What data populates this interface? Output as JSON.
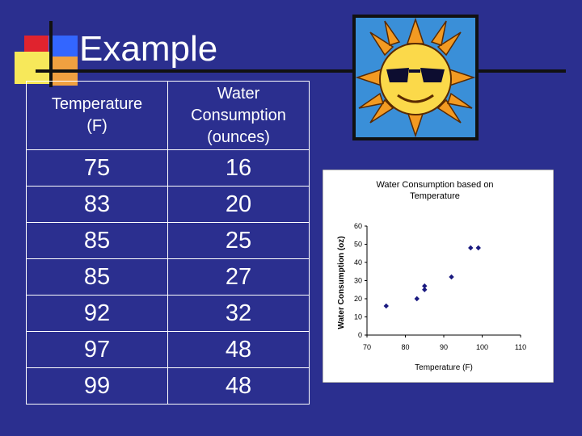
{
  "slide": {
    "title": "Example",
    "colors": {
      "background": "#2b2f8f",
      "text": "#ffffff"
    }
  },
  "table": {
    "headers": [
      "Temperature\n(F)",
      "Water\nConsumption\n(ounces)"
    ],
    "rows": [
      [
        "75",
        "16"
      ],
      [
        "83",
        "20"
      ],
      [
        "85",
        "25"
      ],
      [
        "85",
        "27"
      ],
      [
        "92",
        "32"
      ],
      [
        "97",
        "48"
      ],
      [
        "99",
        "48"
      ]
    ]
  },
  "clipart": {
    "icon": "sun-with-sunglasses-icon"
  },
  "chart_data": {
    "type": "scatter",
    "title": "Water Consumption based on Temperature",
    "xlabel": "Temperature (F)",
    "ylabel": "Water Consumption (oz)",
    "xlim": [
      70,
      110
    ],
    "ylim": [
      0,
      60
    ],
    "xticks": [
      70,
      80,
      90,
      100,
      110
    ],
    "yticks": [
      0,
      10,
      20,
      30,
      40,
      50,
      60
    ],
    "points": [
      {
        "x": 75,
        "y": 16
      },
      {
        "x": 83,
        "y": 20
      },
      {
        "x": 85,
        "y": 25
      },
      {
        "x": 85,
        "y": 27
      },
      {
        "x": 92,
        "y": 32
      },
      {
        "x": 97,
        "y": 48
      },
      {
        "x": 99,
        "y": 48
      }
    ],
    "marker_color": "#1a1a80"
  }
}
